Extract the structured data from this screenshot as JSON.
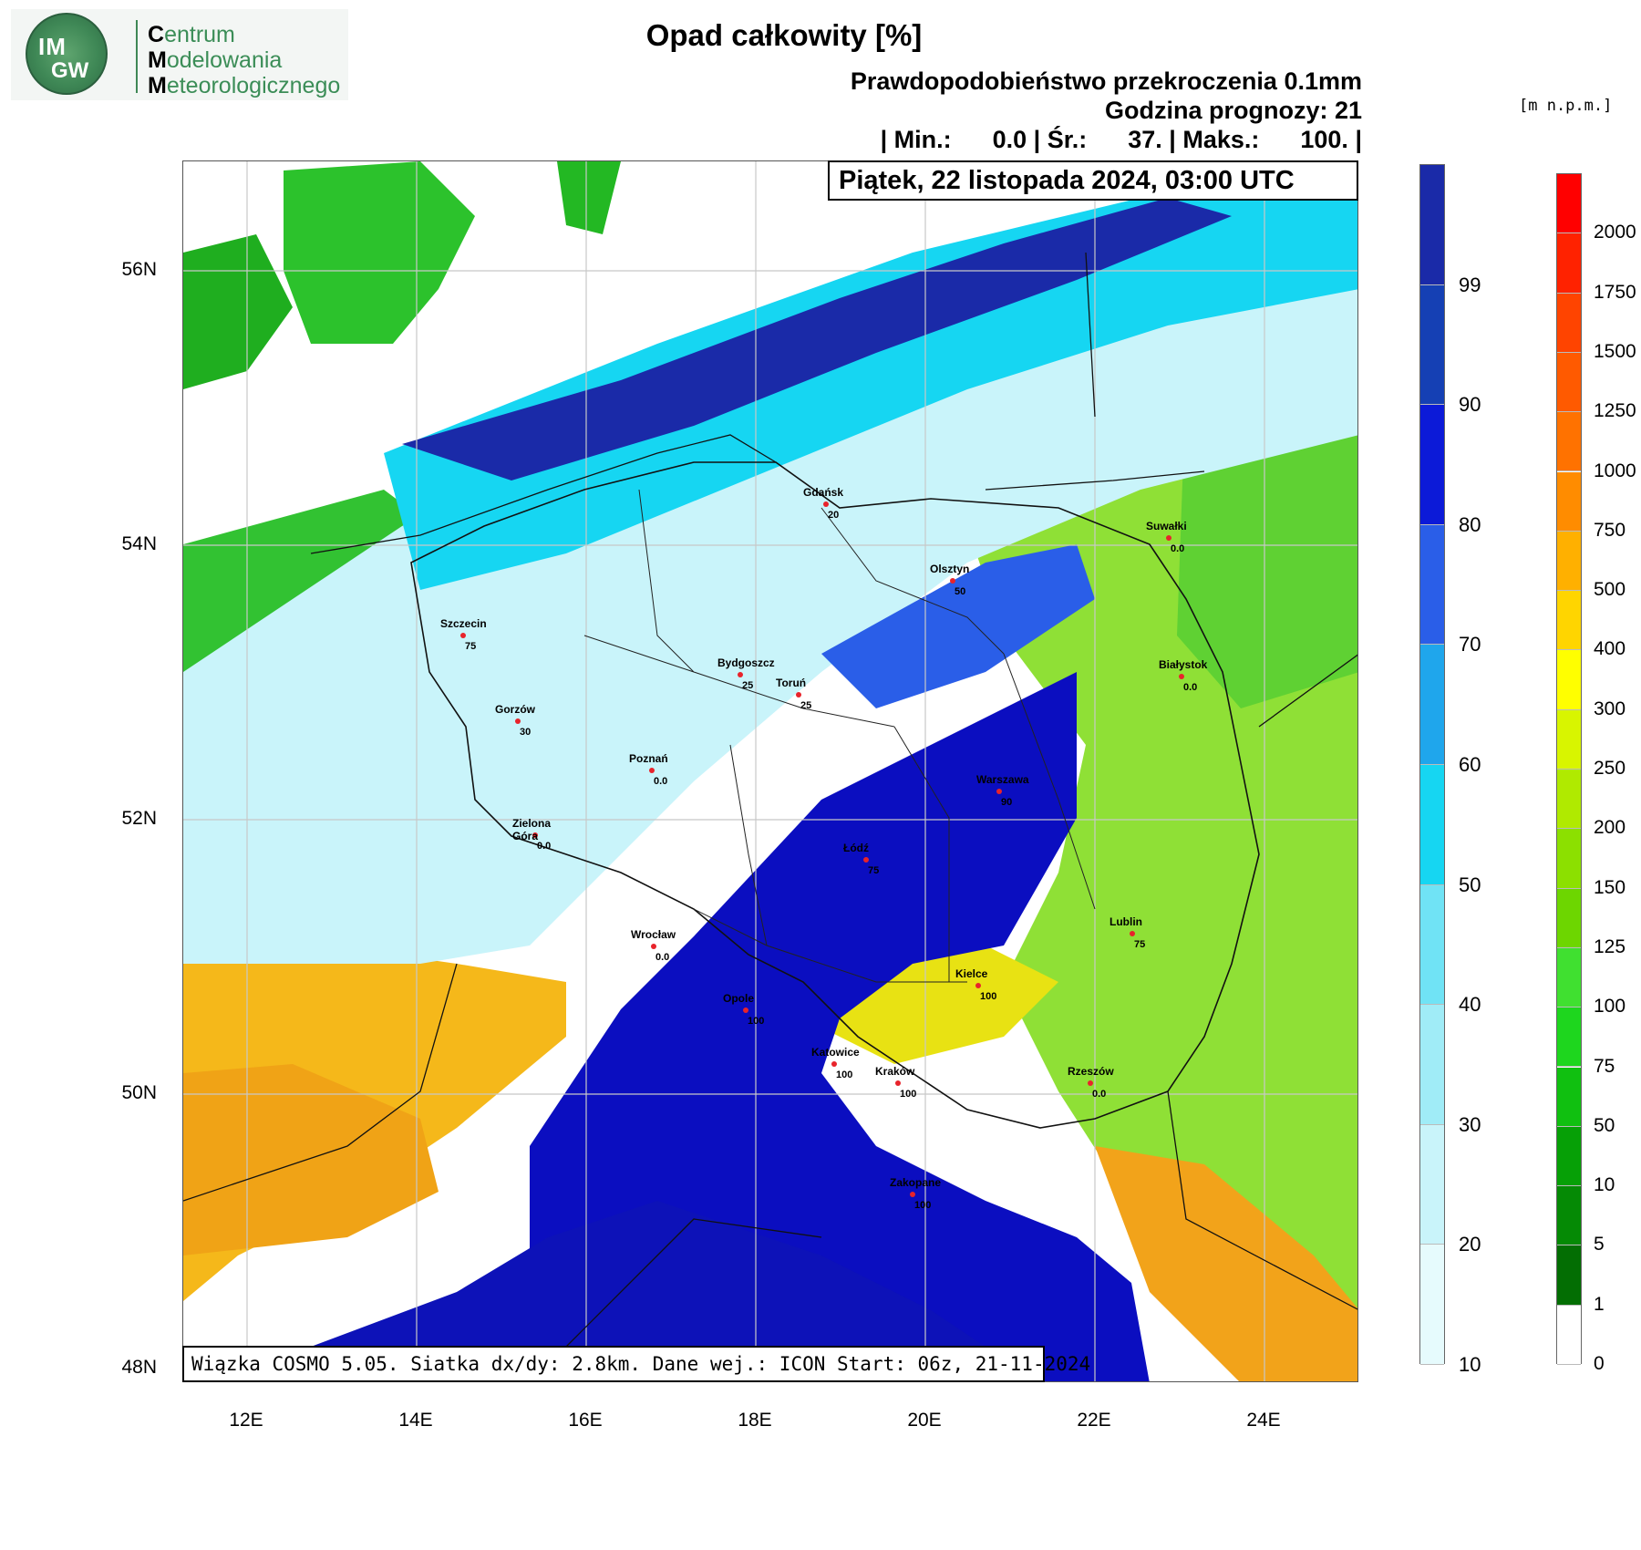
{
  "logo": {
    "badge_top": "IM",
    "badge_bottom": "GW",
    "line1_initial": "C",
    "line1_rest": "entrum",
    "line2_initial": "M",
    "line2_rest": "odelowania",
    "line3_initial": "M",
    "line3_rest": "eteorologicznego"
  },
  "header": {
    "title": "Opad całkowity [%]",
    "probability": "Prawdopodobieństwo przekroczenia 0.1mm",
    "forecast_hour": "Godzina prognozy: 21",
    "stats": "| Min.:      0.0 | Śr.:      37. | Maks.:      100. |",
    "date": "Piątek, 22 listopada 2024, 03:00 UTC",
    "units": "[m n.p.m.]"
  },
  "footer": "Wiązka COSMO 5.05. Siatka dx/dy: 2.8km. Dane wej.: ICON Start: 06z, 21-11-2024",
  "lat_labels": [
    "56N",
    "54N",
    "52N",
    "50N",
    "48N"
  ],
  "lon_labels": [
    "12E",
    "14E",
    "16E",
    "18E",
    "20E",
    "22E",
    "24E"
  ],
  "colorbar_precip": {
    "labels": [
      "99",
      "90",
      "80",
      "70",
      "60",
      "50",
      "40",
      "30",
      "20",
      "10"
    ],
    "colors": [
      "#1a2aa8",
      "#1540b4",
      "#0c1ad8",
      "#2a5ee8",
      "#1fa6ec",
      "#16d6f2",
      "#70e3f5",
      "#a0ecf7",
      "#c9f4fa",
      "#e6fbfd"
    ]
  },
  "colorbar_elev": {
    "labels": [
      "2000",
      "1750",
      "1500",
      "1250",
      "1000",
      "750",
      "500",
      "400",
      "300",
      "250",
      "200",
      "150",
      "125",
      "100",
      "75",
      "50",
      "10",
      "5",
      "1",
      "0"
    ],
    "colors": [
      "#ff0000",
      "#ff2200",
      "#ff4400",
      "#ff5a00",
      "#ff7200",
      "#ff8c00",
      "#ffb000",
      "#ffd500",
      "#ffff00",
      "#d8f500",
      "#b0ea00",
      "#8ce000",
      "#6dd600",
      "#40e030",
      "#1ed61e",
      "#10c010",
      "#06a006",
      "#058a05",
      "#036e03",
      "#ffffff"
    ]
  },
  "cities": [
    {
      "name": "Gdańsk",
      "value": "20"
    },
    {
      "name": "Suwałki",
      "value": "0.0"
    },
    {
      "name": "Olsztyn",
      "value": "50"
    },
    {
      "name": "Szczecin",
      "value": "75"
    },
    {
      "name": "Bydgoszcz",
      "value": "25"
    },
    {
      "name": "Toruń",
      "value": "25"
    },
    {
      "name": "Białystok",
      "value": "0.0"
    },
    {
      "name": "Gorzów",
      "value": "30"
    },
    {
      "name": "Poznań",
      "value": "0.0"
    },
    {
      "name": "Warszawa",
      "value": "90"
    },
    {
      "name": "Zielona Góra",
      "value": "0.0"
    },
    {
      "name": "Łódź",
      "value": "75"
    },
    {
      "name": "Lublin",
      "value": "75"
    },
    {
      "name": "Wrocław",
      "value": "0.0"
    },
    {
      "name": "Kielce",
      "value": "100"
    },
    {
      "name": "Opole",
      "value": "100"
    },
    {
      "name": "Katowice",
      "value": "100"
    },
    {
      "name": "Kraków",
      "value": "100"
    },
    {
      "name": "Rzeszów",
      "value": "0.0"
    },
    {
      "name": "Zakopane",
      "value": "100"
    }
  ]
}
